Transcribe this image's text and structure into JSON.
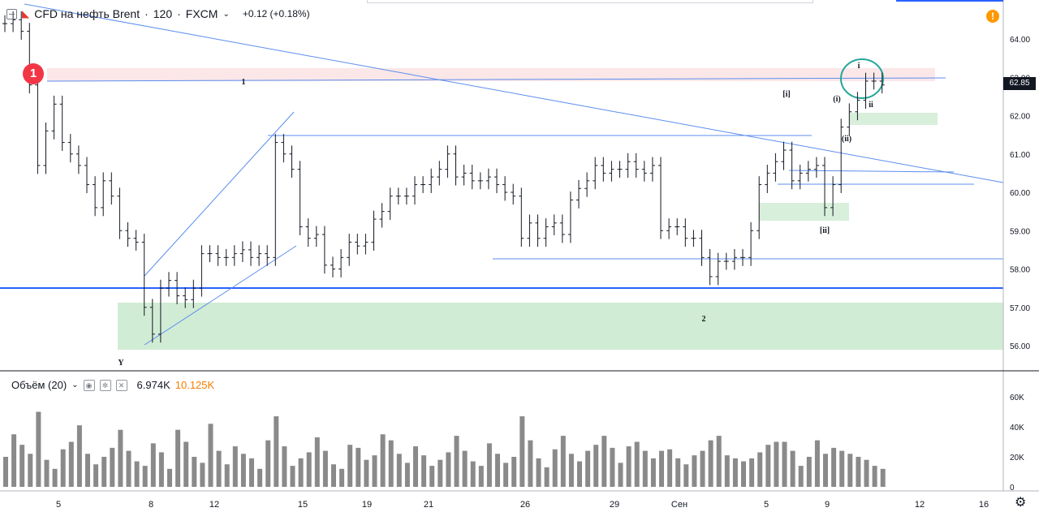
{
  "legend": {
    "symbol": "CFD на нефть Brent",
    "sep": "·",
    "interval": "120",
    "exchange": "FXCM",
    "change": "+0.12 (+0.18%)"
  },
  "volume_legend": {
    "label": "Объём (20)",
    "value1": "6.974K",
    "value2": "10.125K"
  },
  "price_axis_ticks": [
    "64.00",
    "63.00",
    "62.00",
    "61.00",
    "60.00",
    "59.00",
    "58.00",
    "57.00",
    "56.00"
  ],
  "volume_axis_ticks": [
    "60K",
    "40K",
    "20K",
    "0"
  ],
  "time_axis_ticks": [
    "5",
    "8",
    "12",
    "15",
    "19",
    "21",
    "26",
    "29",
    "Сен",
    "5",
    "9",
    "12",
    "16"
  ],
  "current_price": "62.85",
  "badge_number": "1",
  "annotations": [
    "1",
    "Y",
    "2",
    "[i]",
    "[ii]",
    "(i)",
    "(ii)",
    "i",
    "ii"
  ],
  "colors": {
    "trendline": "#5b8def",
    "horizontal_line": "#2962ff",
    "green_zone": "#b2dfb7",
    "red_zone": "#f8d7d9",
    "candles": "#131722",
    "volume": "#8a8a8a",
    "circle": "#26a69a"
  },
  "icons": [
    "chart-menu-icon",
    "tradingview-logo-icon",
    "alert-icon",
    "settings-gear-icon",
    "eye-icon",
    "gear-mini-icon",
    "close-mini-icon"
  ],
  "chart_data": [
    {
      "type": "line",
      "title": "CFD на нефть Brent · 120 · FXCM",
      "ylim": [
        55.7,
        64.6
      ],
      "series": [
        {
          "x": [
            0,
            10,
            20,
            30,
            40,
            50,
            60,
            70,
            80,
            90,
            100,
            110,
            120,
            130,
            140,
            150,
            160,
            170,
            180,
            190,
            200,
            210,
            220,
            230,
            240,
            250,
            260,
            270,
            280,
            290,
            300,
            310,
            320,
            330,
            340,
            350,
            360,
            370,
            380,
            390,
            400,
            410,
            420,
            430,
            440,
            450,
            460,
            470,
            480,
            490,
            500,
            510,
            520,
            530,
            540,
            550,
            560,
            570,
            580,
            590,
            600,
            610,
            620,
            630,
            640,
            650,
            660,
            670,
            680,
            690,
            700,
            710,
            720,
            730,
            740,
            750,
            760,
            770,
            780,
            790,
            800,
            810,
            820,
            830,
            840,
            850,
            860,
            870,
            880,
            890,
            900,
            910,
            920,
            930,
            940,
            950,
            960,
            970,
            980,
            990,
            1000,
            1010,
            1020,
            1030,
            1040,
            1050,
            1060,
            1070
          ],
          "values": [
            64.4,
            64.5,
            64.2,
            62.8,
            60.7,
            61.6,
            62.3,
            61.3,
            61.0,
            60.7,
            60.2,
            59.6,
            60.3,
            59.9,
            59.0,
            58.8,
            58.7,
            57.0,
            56.3,
            57.5,
            57.7,
            57.3,
            57.2,
            57.5,
            58.4,
            58.4,
            58.3,
            58.3,
            58.4,
            58.5,
            58.3,
            58.4,
            58.3,
            61.3,
            61.0,
            60.6,
            59.1,
            58.8,
            58.9,
            58.1,
            58.0,
            58.3,
            58.7,
            58.6,
            58.7,
            59.3,
            59.5,
            59.9,
            59.9,
            59.9,
            60.2,
            60.2,
            60.4,
            60.6,
            61.0,
            60.4,
            60.5,
            60.3,
            60.3,
            60.4,
            60.2,
            60.0,
            59.9,
            58.8,
            59.2,
            58.8,
            59.1,
            59.2,
            58.9,
            59.8,
            60.1,
            60.3,
            60.7,
            60.5,
            60.6,
            60.6,
            60.8,
            60.6,
            60.5,
            60.7,
            59.0,
            59.1,
            59.1,
            58.8,
            58.8,
            58.3,
            57.8,
            58.2,
            58.2,
            58.3,
            58.3,
            59.0,
            60.2,
            60.5,
            60.8,
            61.1,
            60.3,
            60.5,
            60.6,
            60.7,
            59.6,
            60.2,
            61.7,
            62.1,
            62.4,
            62.9,
            62.9,
            62.8
          ]
        }
      ]
    },
    {
      "type": "bar",
      "title": "Объём (20)",
      "ylim": [
        0,
        75000
      ],
      "values": [
        20000,
        35000,
        28000,
        22000,
        50000,
        18000,
        12000,
        25000,
        30000,
        41000,
        22000,
        15000,
        20000,
        26000,
        38000,
        24000,
        17000,
        14000,
        29000,
        23000,
        12000,
        38000,
        30000,
        20000,
        16000,
        42000,
        24000,
        15000,
        27000,
        22000,
        19000,
        12000,
        31000,
        47000,
        27000,
        14000,
        19000,
        23000,
        33000,
        24000,
        15000,
        12000,
        28000,
        26000,
        18000,
        21000,
        35000,
        31000,
        22000,
        16000,
        27000,
        21000,
        14000,
        18000,
        23000,
        34000,
        24000,
        17000,
        14000,
        29000,
        22000,
        16000,
        20000,
        47000,
        31000,
        19000,
        13000,
        25000,
        34000,
        22000,
        17000,
        24000,
        28000,
        34000,
        26000,
        16000,
        27000,
        30000,
        24000,
        19000,
        24000,
        25000,
        19000,
        15000,
        21000,
        24000,
        31000,
        34000,
        21000,
        19000,
        17000,
        19000,
        23000,
        28000,
        30000,
        30000,
        24000,
        14000,
        20000,
        31000,
        22000,
        26000,
        24000,
        22000,
        20000,
        18000,
        14000,
        12000
      ],
      "ylabel": ""
    }
  ]
}
